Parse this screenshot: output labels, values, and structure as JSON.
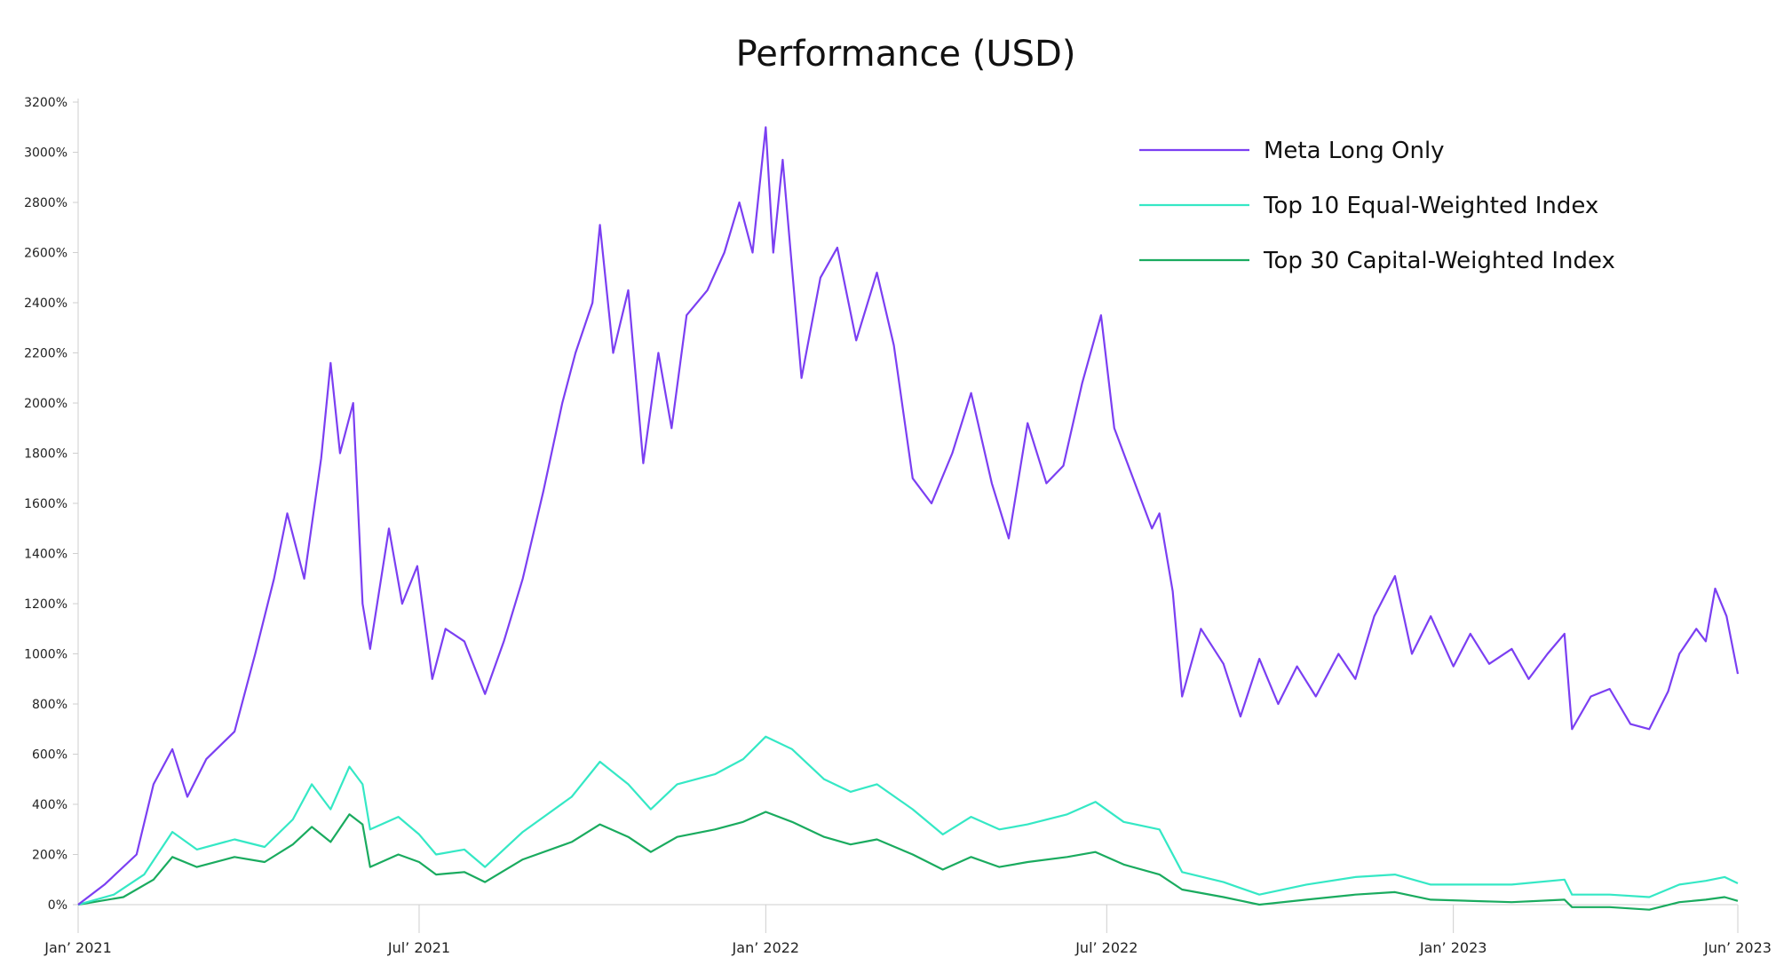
{
  "chart_data": {
    "type": "line",
    "title": "Performance (USD)",
    "xlabel": "",
    "ylabel": "",
    "x_range": [
      "2021-01-01",
      "2023-06-01"
    ],
    "ylim": [
      0,
      3200
    ],
    "y_ticks": [
      0,
      200,
      400,
      600,
      800,
      1000,
      1200,
      1400,
      1600,
      1800,
      2000,
      2200,
      2400,
      2600,
      2800,
      3000,
      3200
    ],
    "y_tick_labels": [
      "0%",
      "200%",
      "400%",
      "600%",
      "800%",
      "1000%",
      "1200%",
      "1400%",
      "1600%",
      "1800%",
      "2000%",
      "2200%",
      "2400%",
      "2600%",
      "2800%",
      "3000%",
      "3200%"
    ],
    "x_ticks": [
      "2021-01-01",
      "2021-07-01",
      "2022-01-01",
      "2022-07-01",
      "2023-01-01",
      "2023-06-01"
    ],
    "x_tick_labels": [
      "Jan’ 2021",
      "Jul’ 2021",
      "Jan’ 2022",
      "Jul’ 2022",
      "Jan’ 2023",
      "Jun’ 2023"
    ],
    "grid": false,
    "legend_position": "top-right",
    "series": [
      {
        "name": "Meta Long Only",
        "color": "#7b3ff2",
        "points": [
          [
            "2021-01-01",
            0
          ],
          [
            "2021-01-15",
            80
          ],
          [
            "2021-02-01",
            200
          ],
          [
            "2021-02-10",
            480
          ],
          [
            "2021-02-20",
            620
          ],
          [
            "2021-02-28",
            430
          ],
          [
            "2021-03-10",
            580
          ],
          [
            "2021-03-25",
            690
          ],
          [
            "2021-04-05",
            1000
          ],
          [
            "2021-04-15",
            1300
          ],
          [
            "2021-04-22",
            1560
          ],
          [
            "2021-05-01",
            1300
          ],
          [
            "2021-05-10",
            1780
          ],
          [
            "2021-05-15",
            2160
          ],
          [
            "2021-05-20",
            1800
          ],
          [
            "2021-05-27",
            2000
          ],
          [
            "2021-06-01",
            1200
          ],
          [
            "2021-06-05",
            1020
          ],
          [
            "2021-06-15",
            1500
          ],
          [
            "2021-06-22",
            1200
          ],
          [
            "2021-06-30",
            1350
          ],
          [
            "2021-07-08",
            900
          ],
          [
            "2021-07-15",
            1100
          ],
          [
            "2021-07-25",
            1050
          ],
          [
            "2021-08-05",
            840
          ],
          [
            "2021-08-15",
            1050
          ],
          [
            "2021-08-25",
            1300
          ],
          [
            "2021-09-05",
            1650
          ],
          [
            "2021-09-15",
            2000
          ],
          [
            "2021-09-22",
            2200
          ],
          [
            "2021-10-01",
            2400
          ],
          [
            "2021-10-05",
            2710
          ],
          [
            "2021-10-12",
            2200
          ],
          [
            "2021-10-20",
            2450
          ],
          [
            "2021-10-28",
            1760
          ],
          [
            "2021-11-05",
            2200
          ],
          [
            "2021-11-12",
            1900
          ],
          [
            "2021-11-20",
            2350
          ],
          [
            "2021-12-01",
            2450
          ],
          [
            "2021-12-10",
            2600
          ],
          [
            "2021-12-18",
            2800
          ],
          [
            "2021-12-25",
            2600
          ],
          [
            "2022-01-01",
            3100
          ],
          [
            "2022-01-05",
            2600
          ],
          [
            "2022-01-10",
            2970
          ],
          [
            "2022-01-20",
            2100
          ],
          [
            "2022-01-30",
            2500
          ],
          [
            "2022-02-08",
            2620
          ],
          [
            "2022-02-18",
            2250
          ],
          [
            "2022-03-01",
            2520
          ],
          [
            "2022-03-10",
            2230
          ],
          [
            "2022-03-20",
            1700
          ],
          [
            "2022-03-30",
            1600
          ],
          [
            "2022-04-10",
            1800
          ],
          [
            "2022-04-20",
            2040
          ],
          [
            "2022-05-01",
            1680
          ],
          [
            "2022-05-10",
            1460
          ],
          [
            "2022-05-20",
            1920
          ],
          [
            "2022-05-30",
            1680
          ],
          [
            "2022-06-08",
            1750
          ],
          [
            "2022-06-18",
            2080
          ],
          [
            "2022-06-28",
            2350
          ],
          [
            "2022-07-05",
            1900
          ],
          [
            "2022-07-15",
            1700
          ],
          [
            "2022-07-25",
            1500
          ],
          [
            "2022-07-29",
            1560
          ],
          [
            "2022-08-05",
            1250
          ],
          [
            "2022-08-10",
            830
          ],
          [
            "2022-08-20",
            1100
          ],
          [
            "2022-09-01",
            960
          ],
          [
            "2022-09-10",
            750
          ],
          [
            "2022-09-20",
            980
          ],
          [
            "2022-09-30",
            800
          ],
          [
            "2022-10-10",
            950
          ],
          [
            "2022-10-20",
            830
          ],
          [
            "2022-11-01",
            1000
          ],
          [
            "2022-11-10",
            900
          ],
          [
            "2022-11-20",
            1150
          ],
          [
            "2022-12-01",
            1310
          ],
          [
            "2022-12-10",
            1000
          ],
          [
            "2022-12-20",
            1150
          ],
          [
            "2023-01-01",
            950
          ],
          [
            "2023-01-10",
            1080
          ],
          [
            "2023-01-20",
            960
          ],
          [
            "2023-02-01",
            1020
          ],
          [
            "2023-02-10",
            900
          ],
          [
            "2023-02-20",
            1000
          ],
          [
            "2023-03-01",
            1080
          ],
          [
            "2023-03-05",
            700
          ],
          [
            "2023-03-15",
            830
          ],
          [
            "2023-03-25",
            860
          ],
          [
            "2023-04-05",
            720
          ],
          [
            "2023-04-15",
            700
          ],
          [
            "2023-04-25",
            850
          ],
          [
            "2023-05-01",
            1000
          ],
          [
            "2023-05-10",
            1100
          ],
          [
            "2023-05-15",
            1050
          ],
          [
            "2023-05-20",
            1260
          ],
          [
            "2023-05-26",
            1150
          ],
          [
            "2023-06-01",
            920
          ]
        ]
      },
      {
        "name": "Top 10 Equal-Weighted Index",
        "color": "#35e8c5",
        "points": [
          [
            "2021-01-01",
            0
          ],
          [
            "2021-01-20",
            40
          ],
          [
            "2021-02-05",
            120
          ],
          [
            "2021-02-20",
            290
          ],
          [
            "2021-03-05",
            220
          ],
          [
            "2021-03-25",
            260
          ],
          [
            "2021-04-10",
            230
          ],
          [
            "2021-04-25",
            340
          ],
          [
            "2021-05-05",
            480
          ],
          [
            "2021-05-15",
            380
          ],
          [
            "2021-05-25",
            550
          ],
          [
            "2021-06-01",
            480
          ],
          [
            "2021-06-05",
            300
          ],
          [
            "2021-06-20",
            350
          ],
          [
            "2021-07-01",
            280
          ],
          [
            "2021-07-10",
            200
          ],
          [
            "2021-07-25",
            220
          ],
          [
            "2021-08-05",
            150
          ],
          [
            "2021-08-25",
            290
          ],
          [
            "2021-09-20",
            430
          ],
          [
            "2021-10-05",
            570
          ],
          [
            "2021-10-20",
            480
          ],
          [
            "2021-11-01",
            380
          ],
          [
            "2021-11-15",
            480
          ],
          [
            "2021-12-05",
            520
          ],
          [
            "2021-12-20",
            580
          ],
          [
            "2022-01-01",
            670
          ],
          [
            "2022-01-15",
            620
          ],
          [
            "2022-02-01",
            500
          ],
          [
            "2022-02-15",
            450
          ],
          [
            "2022-03-01",
            480
          ],
          [
            "2022-03-20",
            380
          ],
          [
            "2022-04-05",
            280
          ],
          [
            "2022-04-20",
            350
          ],
          [
            "2022-05-05",
            300
          ],
          [
            "2022-05-20",
            320
          ],
          [
            "2022-06-10",
            360
          ],
          [
            "2022-06-25",
            410
          ],
          [
            "2022-07-10",
            330
          ],
          [
            "2022-07-29",
            300
          ],
          [
            "2022-08-10",
            130
          ],
          [
            "2022-09-01",
            90
          ],
          [
            "2022-09-20",
            40
          ],
          [
            "2022-10-15",
            80
          ],
          [
            "2022-11-10",
            110
          ],
          [
            "2022-12-01",
            120
          ],
          [
            "2022-12-20",
            80
          ],
          [
            "2023-02-01",
            80
          ],
          [
            "2023-03-01",
            100
          ],
          [
            "2023-03-05",
            40
          ],
          [
            "2023-03-25",
            40
          ],
          [
            "2023-04-15",
            30
          ],
          [
            "2023-05-01",
            80
          ],
          [
            "2023-05-15",
            95
          ],
          [
            "2023-05-25",
            110
          ],
          [
            "2023-06-01",
            85
          ]
        ]
      },
      {
        "name": "Top 30 Capital-Weighted Index",
        "color": "#1aab5f",
        "points": [
          [
            "2021-01-01",
            0
          ],
          [
            "2021-01-25",
            30
          ],
          [
            "2021-02-10",
            100
          ],
          [
            "2021-02-20",
            190
          ],
          [
            "2021-03-05",
            150
          ],
          [
            "2021-03-25",
            190
          ],
          [
            "2021-04-10",
            170
          ],
          [
            "2021-04-25",
            240
          ],
          [
            "2021-05-05",
            310
          ],
          [
            "2021-05-15",
            250
          ],
          [
            "2021-05-25",
            360
          ],
          [
            "2021-06-01",
            320
          ],
          [
            "2021-06-05",
            150
          ],
          [
            "2021-06-20",
            200
          ],
          [
            "2021-07-01",
            170
          ],
          [
            "2021-07-10",
            120
          ],
          [
            "2021-07-25",
            130
          ],
          [
            "2021-08-05",
            90
          ],
          [
            "2021-08-25",
            180
          ],
          [
            "2021-09-20",
            250
          ],
          [
            "2021-10-05",
            320
          ],
          [
            "2021-10-20",
            270
          ],
          [
            "2021-11-01",
            210
          ],
          [
            "2021-11-15",
            270
          ],
          [
            "2021-12-05",
            300
          ],
          [
            "2021-12-20",
            330
          ],
          [
            "2022-01-01",
            370
          ],
          [
            "2022-01-15",
            330
          ],
          [
            "2022-02-01",
            270
          ],
          [
            "2022-02-15",
            240
          ],
          [
            "2022-03-01",
            260
          ],
          [
            "2022-03-20",
            200
          ],
          [
            "2022-04-05",
            140
          ],
          [
            "2022-04-20",
            190
          ],
          [
            "2022-05-05",
            150
          ],
          [
            "2022-05-20",
            170
          ],
          [
            "2022-06-10",
            190
          ],
          [
            "2022-06-25",
            210
          ],
          [
            "2022-07-10",
            160
          ],
          [
            "2022-07-29",
            120
          ],
          [
            "2022-08-10",
            60
          ],
          [
            "2022-09-01",
            30
          ],
          [
            "2022-09-20",
            0
          ],
          [
            "2022-10-15",
            20
          ],
          [
            "2022-11-10",
            40
          ],
          [
            "2022-12-01",
            50
          ],
          [
            "2022-12-20",
            20
          ],
          [
            "2023-02-01",
            10
          ],
          [
            "2023-03-01",
            20
          ],
          [
            "2023-03-05",
            -10
          ],
          [
            "2023-03-25",
            -10
          ],
          [
            "2023-04-15",
            -20
          ],
          [
            "2023-05-01",
            10
          ],
          [
            "2023-05-15",
            20
          ],
          [
            "2023-05-25",
            30
          ],
          [
            "2023-06-01",
            15
          ]
        ]
      }
    ]
  }
}
